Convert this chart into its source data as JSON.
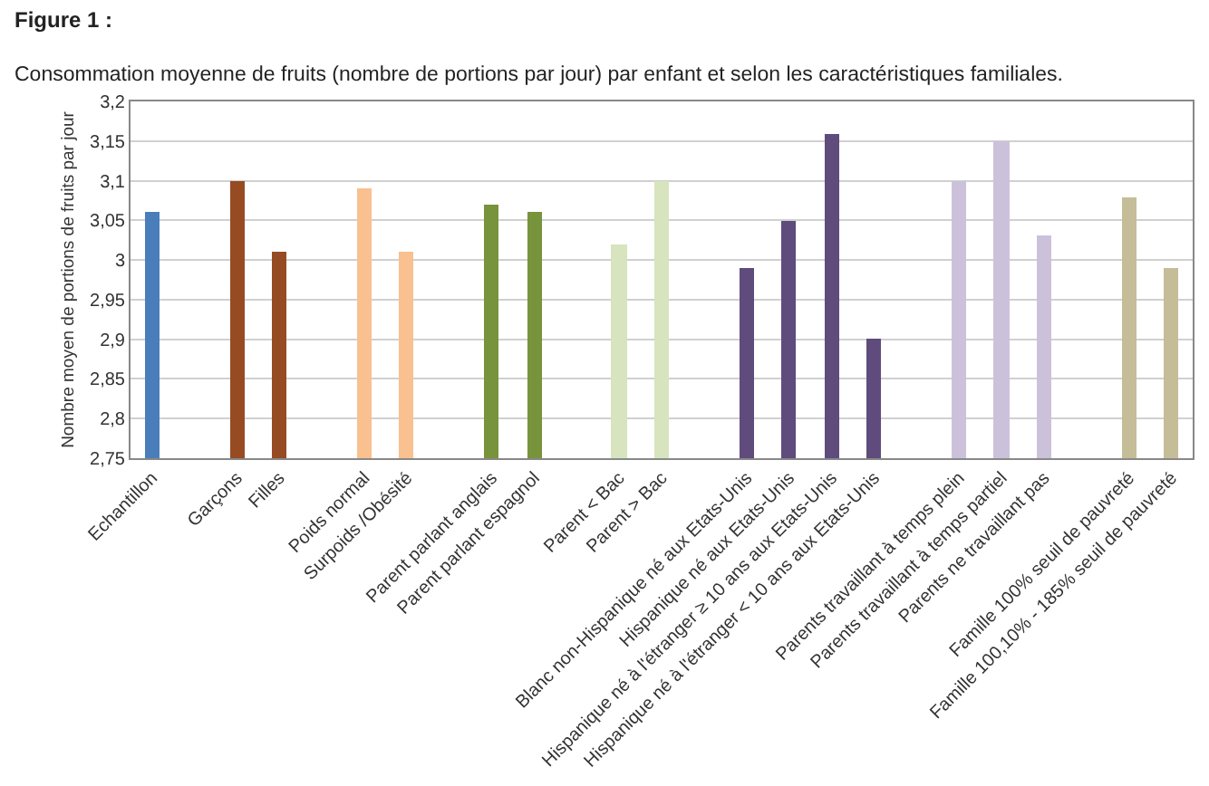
{
  "chart_data": {
    "type": "bar",
    "title": "Figure 1 :",
    "subtitle": "Consommation moyenne de fruits (nombre de portions par jour) par enfant et selon les caractéristiques familiales.",
    "ylabel": "Nombre moyen de portions de fruits par jour",
    "categories": [
      "Echantillon",
      null,
      "Garçons",
      "Filles",
      null,
      "Poids normal",
      "Surpoids /Obésité",
      null,
      "Parent parlant anglais",
      "Parent parlant espagnol",
      null,
      "Parent < Bac",
      "Parent > Bac",
      null,
      "Blanc non-Hispanique né aux Etats-Unis",
      "Hispanique né aux Etats-Unis",
      "Hispanique né à l'étranger ≥ 10 ans aux Etats-Unis",
      "Hispanique né à l'étranger < 10 ans aux Etats-Unis",
      null,
      "Parents travaillant à temps plein",
      "Parents travaillant à temps partiel",
      "Parents ne travaillant pas",
      null,
      "Famille 100% seuil de pauvreté",
      "Famille 100,10% - 185% seuil de pauvreté"
    ],
    "values": [
      3.06,
      null,
      3.1,
      3.01,
      null,
      3.09,
      3.01,
      null,
      3.07,
      3.06,
      null,
      3.02,
      3.1,
      null,
      2.99,
      3.05,
      3.16,
      2.9,
      null,
      3.1,
      3.15,
      3.03,
      null,
      3.08,
      2.99
    ],
    "colors": [
      "#4a7ebb",
      null,
      "#974b23",
      "#974b23",
      null,
      "#f9c090",
      "#f9c090",
      null,
      "#77933c",
      "#77933c",
      null,
      "#d7e4bd",
      "#d7e4bd",
      null,
      "#5f4b7c",
      "#5f4b7c",
      "#5f4b7c",
      "#5f4b7c",
      null,
      "#ccc1da",
      "#ccc1da",
      "#ccc1da",
      null,
      "#c4bd97",
      "#c4bd97"
    ],
    "ylim": [
      2.75,
      3.2
    ],
    "yticks": [
      {
        "value": 2.75,
        "label": "2,75"
      },
      {
        "value": 2.8,
        "label": "2,8"
      },
      {
        "value": 2.85,
        "label": "2,85"
      },
      {
        "value": 2.9,
        "label": "2,9"
      },
      {
        "value": 2.95,
        "label": "2,95"
      },
      3,
      {
        "value": 3.05,
        "label": "3,05"
      },
      {
        "value": 3.1,
        "label": "3,1"
      },
      {
        "value": 3.15,
        "label": "3,15"
      },
      {
        "value": 3.2,
        "label": "3,2"
      }
    ],
    "grid": "y"
  }
}
